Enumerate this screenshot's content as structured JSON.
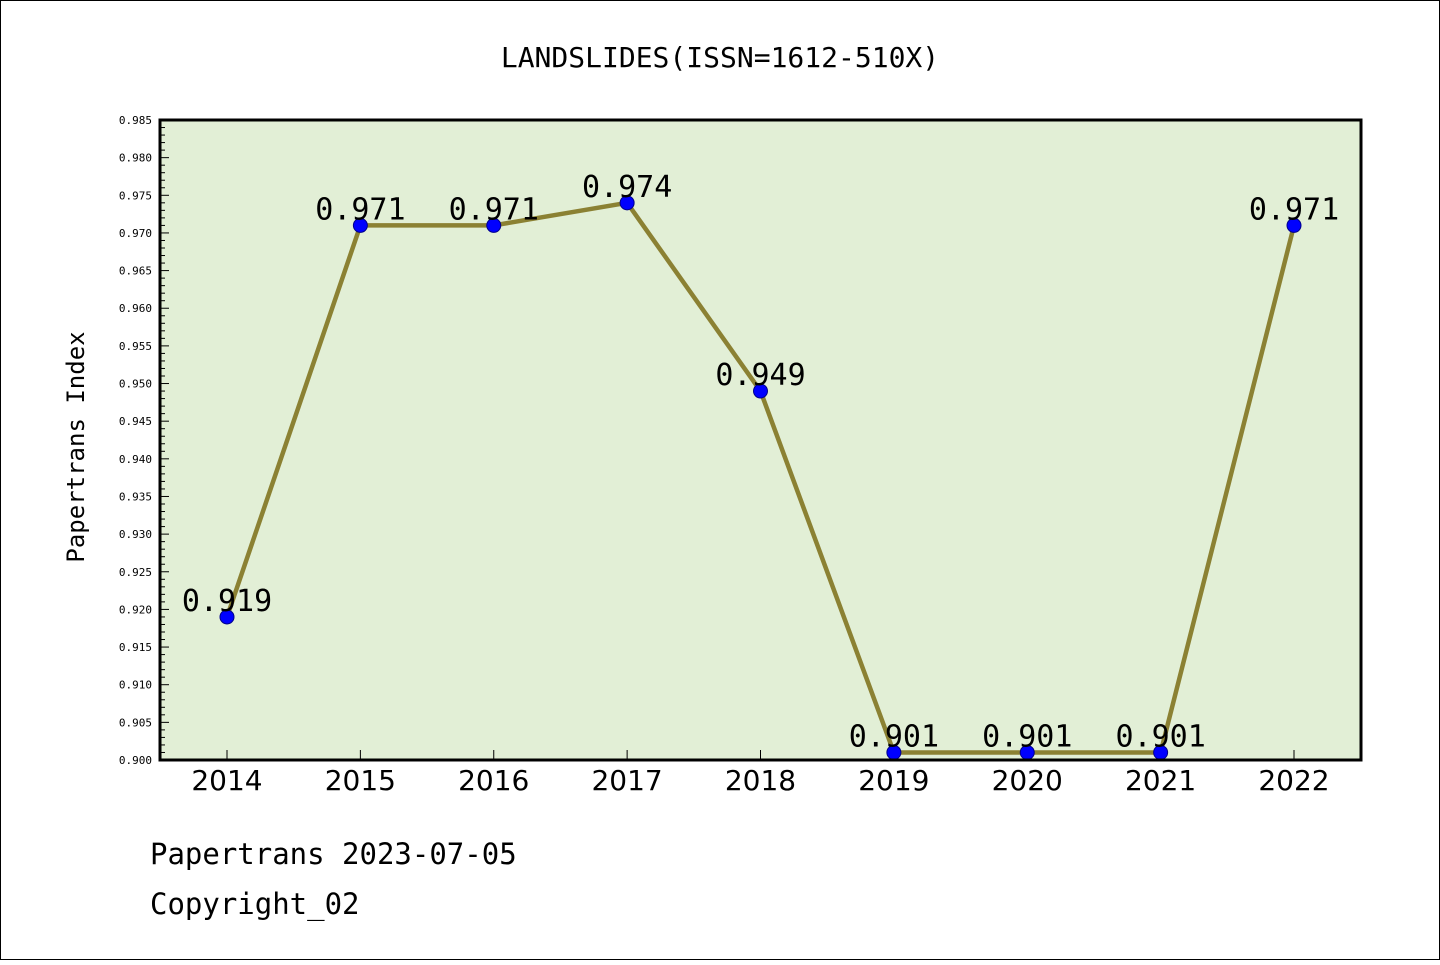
{
  "chart_data": {
    "type": "line",
    "title": "LANDSLIDES(ISSN=1612-510X)",
    "ylabel": "Papertrans Index",
    "xlabel": "",
    "categories": [
      "2014",
      "2015",
      "2016",
      "2017",
      "2018",
      "2019",
      "2020",
      "2021",
      "2022"
    ],
    "series": [
      {
        "values": [
          0.919,
          0.971,
          0.971,
          0.974,
          0.949,
          0.901,
          0.901,
          0.901,
          0.971
        ],
        "labels": [
          "0.919",
          "0.971",
          "0.971",
          "0.974",
          "0.949",
          "0.901",
          "0.901",
          "0.901",
          "0.971"
        ]
      }
    ],
    "ylim": [
      0.9,
      0.985
    ],
    "yticks": [
      "0.900",
      "0.905",
      "0.910",
      "0.915",
      "0.920",
      "0.925",
      "0.930",
      "0.935",
      "0.940",
      "0.945",
      "0.950",
      "0.955",
      "0.960",
      "0.965",
      "0.970",
      "0.975",
      "0.980",
      "0.985"
    ],
    "grid": false,
    "legend": "none",
    "colors": {
      "plot_background": "#e2efd6",
      "line": "#8b8133",
      "marker": "#0000ff",
      "marker_edge": "#00008b",
      "frame": "#000000"
    }
  },
  "footer": {
    "line1": "Papertrans 2023-07-05",
    "line2": "Copyright_02"
  }
}
